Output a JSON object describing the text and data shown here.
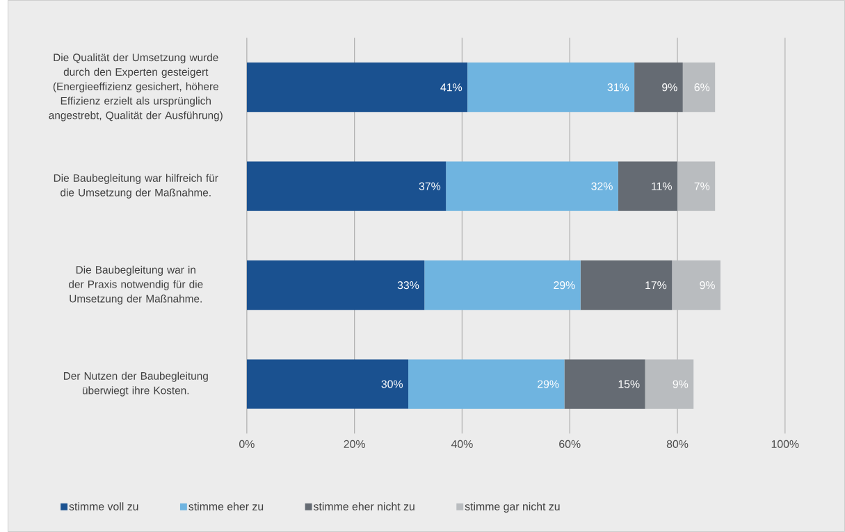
{
  "chart_data": {
    "type": "bar",
    "orientation": "horizontal",
    "stacked": true,
    "categories": [
      "Die Qualität der Umsetzung wurde durch den Experten gesteigert (Energieeffizienz gesichert, höhere Effizienz erzielt als ursprünglich angestrebt, Qualität der Ausführung)",
      "Die Baubegleitung war hilfreich für die Umsetzung der Maßnahme.",
      "Die Baubegleitung war in der Praxis notwendig für die Umsetzung der Maßnahme.",
      "Der Nutzen der Baubegleitung überwiegt ihre Kosten."
    ],
    "series": [
      {
        "name": "stimme voll zu",
        "color": "#1a5190",
        "values": [
          41,
          37,
          33,
          30
        ],
        "value_labels": [
          "41%",
          "37%",
          "33%",
          "30%"
        ]
      },
      {
        "name": "stimme eher zu",
        "color": "#6fb4e0",
        "values": [
          31,
          32,
          29,
          29
        ],
        "value_labels": [
          "31%",
          "32%",
          "29%",
          "29%"
        ]
      },
      {
        "name": "stimme eher nicht zu",
        "color": "#656b73",
        "values": [
          9,
          11,
          17,
          15
        ],
        "value_labels": [
          "9%",
          "11%",
          "17%",
          "15%"
        ]
      },
      {
        "name": "stimme gar nicht zu",
        "color": "#b9bcbf",
        "values": [
          6,
          7,
          9,
          9
        ],
        "value_labels": [
          "6%",
          "7%",
          "9%",
          "9%"
        ]
      }
    ],
    "xlim": [
      0,
      100
    ],
    "xticks": [
      {
        "value": 0,
        "label": "0%"
      },
      {
        "value": 20,
        "label": "20%"
      },
      {
        "value": 40,
        "label": "40%"
      },
      {
        "value": 60,
        "label": "60%"
      },
      {
        "value": 80,
        "label": "80%"
      },
      {
        "value": 100,
        "label": "100%"
      }
    ],
    "grid": "x",
    "legend": "bottom"
  }
}
